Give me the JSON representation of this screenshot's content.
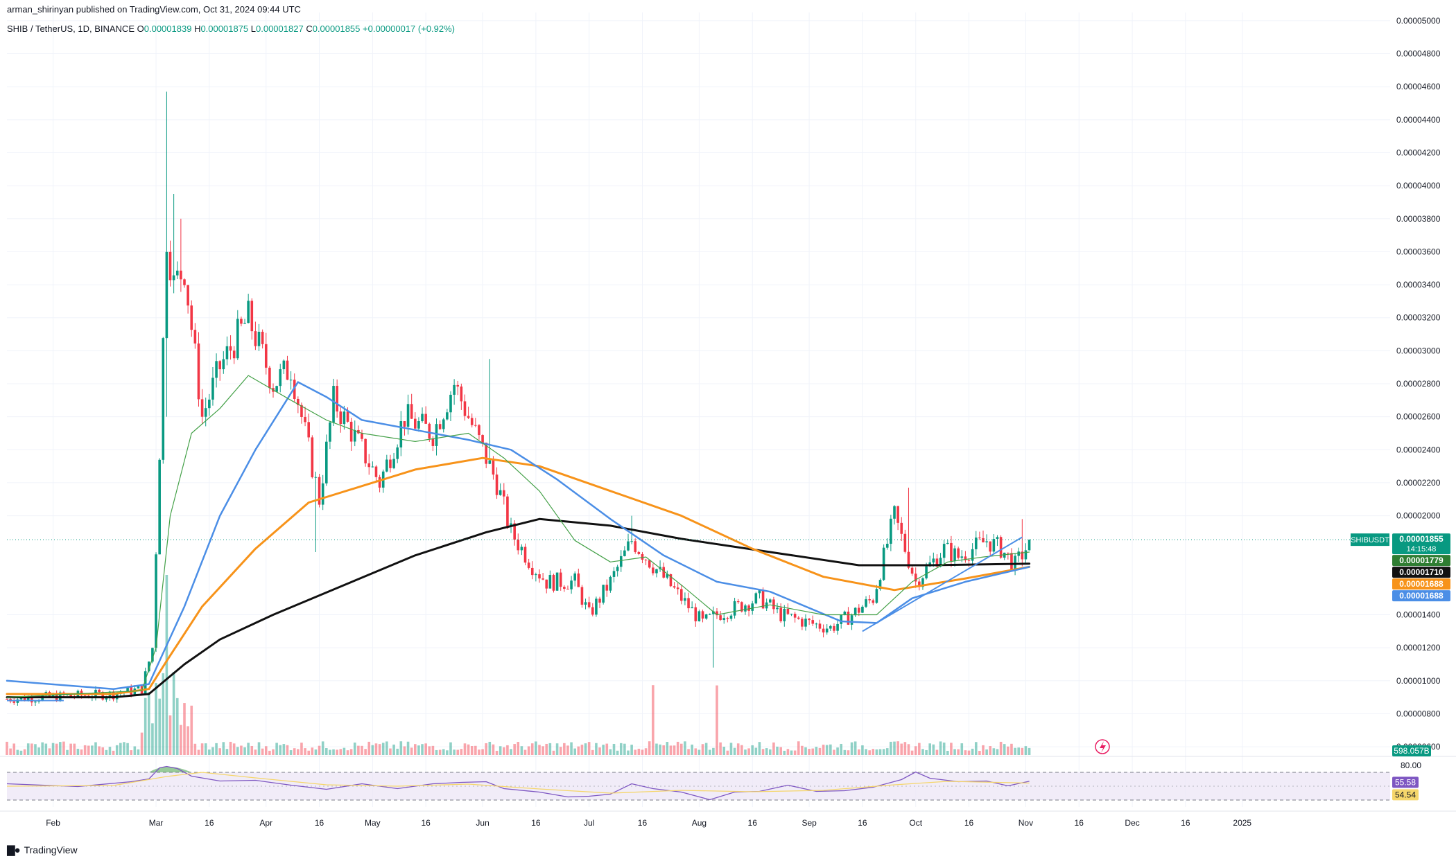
{
  "header": {
    "published": "arman_shirinyan published on TradingView.com, Oct 31, 2024 09:44 UTC",
    "symbol_line": "SHIB / TetherUS, 1D, BINANCE",
    "ohlc": {
      "open_label": "O",
      "open": "0.00001839",
      "high_label": "H",
      "high": "0.00001875",
      "low_label": "L",
      "low": "0.00001827",
      "close_label": "C",
      "close": "0.00001855",
      "change": "+0.00000017 (+0.92%)"
    }
  },
  "footer": {
    "brand": "TradingView"
  },
  "colors": {
    "up": "#089981",
    "down": "#f23645",
    "ma_green": "#43a047",
    "ma_blue": "#4b8ee6",
    "ma_orange": "#f7931a",
    "ma_black": "#111111",
    "rsi_line": "#7e57c2",
    "rsi_ma": "#f5d66b",
    "rsi_band": "#ede7f6"
  },
  "chart_data": {
    "type": "candlestick",
    "symbol": "SHIBUSDT",
    "y_axis": {
      "ticks": [
        "0.00005000",
        "0.00004800",
        "0.00004600",
        "0.00004400",
        "0.00004200",
        "0.00004000",
        "0.00003800",
        "0.00003600",
        "0.00003400",
        "0.00003200",
        "0.00003000",
        "0.00002800",
        "0.00002600",
        "0.00002400",
        "0.00002200",
        "0.00002000",
        "0.00001400",
        "0.00001200",
        "0.00001000",
        "0.00000800",
        "0.00000600"
      ],
      "range": [
        5.5e-06,
        5.05e-05
      ]
    },
    "x_axis": {
      "ticks": [
        "Feb",
        "Mar",
        "16",
        "Apr",
        "16",
        "May",
        "16",
        "Jun",
        "16",
        "Jul",
        "16",
        "Aug",
        "16",
        "Sep",
        "16",
        "Oct",
        "16",
        "Nov",
        "16",
        "Dec",
        "16",
        "2025"
      ],
      "tick_days": [
        13,
        42,
        57,
        73,
        88,
        103,
        118,
        134,
        149,
        164,
        179,
        195,
        210,
        226,
        241,
        256,
        271,
        287,
        302,
        317,
        332,
        348
      ]
    },
    "key_points": {
      "days": [
        0,
        30,
        38,
        41,
        43,
        45,
        47,
        50,
        55,
        60,
        68,
        75,
        80,
        88,
        92,
        100,
        105,
        112,
        120,
        126,
        130,
        134,
        138,
        142,
        148,
        152,
        160,
        164,
        170,
        176,
        182,
        190,
        196,
        200,
        206,
        212,
        218,
        226,
        232,
        238,
        244,
        250,
        253,
        256,
        260,
        264,
        268,
        272,
        276,
        280,
        284,
        287,
        288
      ],
      "prices": [
        8.9e-06,
        9.2e-06,
        9.5e-06,
        1.2e-05,
        2.4e-05,
        3.7e-05,
        3.4e-05,
        3.5e-05,
        2.6e-05,
        2.9e-05,
        3.2e-05,
        2.8e-05,
        2.9e-05,
        2.1e-05,
        2.7e-05,
        2.4e-05,
        2.2e-05,
        2.6e-05,
        2.5e-05,
        2.8e-05,
        2.6e-05,
        2.4e-05,
        2.2e-05,
        1.9e-05,
        1.7e-05,
        1.6e-05,
        1.6e-05,
        1.4e-05,
        1.6e-05,
        1.85e-05,
        1.7e-05,
        1.5e-05,
        1.35e-05,
        1.4e-05,
        1.45e-05,
        1.5e-05,
        1.4e-05,
        1.35e-05,
        1.32e-05,
        1.4e-05,
        1.5e-05,
        2e-05,
        1.8e-05,
        1.6e-05,
        1.7e-05,
        1.8e-05,
        1.75e-05,
        1.8e-05,
        1.85e-05,
        1.8e-05,
        1.7e-05,
        1.8e-05,
        1.855e-05
      ]
    },
    "spikes": [
      {
        "day": 45,
        "high": 4.57e-05,
        "low": 2.6e-05
      },
      {
        "day": 47,
        "high": 3.95e-05
      },
      {
        "day": 49,
        "high": 3.8e-05
      },
      {
        "day": 87,
        "low": 1.78e-05
      },
      {
        "day": 136,
        "high": 2.95e-05
      },
      {
        "day": 176,
        "high": 2e-05
      },
      {
        "day": 199,
        "low": 1.08e-05
      },
      {
        "day": 254,
        "high": 2.17e-05
      },
      {
        "day": 286,
        "high": 1.98e-05
      }
    ],
    "moving_averages": [
      {
        "color_key": "ma_black",
        "width": 3,
        "points": [
          [
            0,
            9e-06
          ],
          [
            30,
            9e-06
          ],
          [
            40,
            9.2e-06
          ],
          [
            50,
            1.1e-05
          ],
          [
            60,
            1.25e-05
          ],
          [
            75,
            1.4e-05
          ],
          [
            95,
            1.58e-05
          ],
          [
            115,
            1.76e-05
          ],
          [
            135,
            1.9e-05
          ],
          [
            150,
            1.98e-05
          ],
          [
            170,
            1.94e-05
          ],
          [
            190,
            1.86e-05
          ],
          [
            215,
            1.78e-05
          ],
          [
            240,
            1.7e-05
          ],
          [
            260,
            1.7e-05
          ],
          [
            288,
            1.71e-05
          ]
        ]
      },
      {
        "color_key": "ma_orange",
        "width": 3,
        "points": [
          [
            0,
            9.2e-06
          ],
          [
            30,
            9.2e-06
          ],
          [
            40,
            9.5e-06
          ],
          [
            45,
            1.12e-05
          ],
          [
            55,
            1.45e-05
          ],
          [
            70,
            1.8e-05
          ],
          [
            85,
            2.08e-05
          ],
          [
            100,
            2.18e-05
          ],
          [
            115,
            2.28e-05
          ],
          [
            134,
            2.35e-05
          ],
          [
            150,
            2.3e-05
          ],
          [
            170,
            2.15e-05
          ],
          [
            190,
            2e-05
          ],
          [
            210,
            1.8e-05
          ],
          [
            230,
            1.63e-05
          ],
          [
            250,
            1.55e-05
          ],
          [
            270,
            1.62e-05
          ],
          [
            288,
            1.69e-05
          ]
        ]
      },
      {
        "color_key": "ma_blue",
        "width": 2.5,
        "points": [
          [
            0,
            1e-05
          ],
          [
            30,
            9.5e-06
          ],
          [
            40,
            9.8e-06
          ],
          [
            50,
            1.45e-05
          ],
          [
            60,
            2e-05
          ],
          [
            70,
            2.4e-05
          ],
          [
            82,
            2.81e-05
          ],
          [
            90,
            2.72e-05
          ],
          [
            100,
            2.58e-05
          ],
          [
            115,
            2.52e-05
          ],
          [
            130,
            2.46e-05
          ],
          [
            142,
            2.4e-05
          ],
          [
            155,
            2.22e-05
          ],
          [
            170,
            1.98e-05
          ],
          [
            185,
            1.76e-05
          ],
          [
            200,
            1.6e-05
          ],
          [
            215,
            1.54e-05
          ],
          [
            235,
            1.36e-05
          ],
          [
            245,
            1.35e-05
          ],
          [
            255,
            1.5e-05
          ],
          [
            270,
            1.6e-05
          ],
          [
            288,
            1.69e-05
          ]
        ]
      },
      {
        "color_key": "ma_green",
        "width": 1.2,
        "points": [
          [
            0,
            9e-06
          ],
          [
            38,
            9.4e-06
          ],
          [
            42,
            1.2e-05
          ],
          [
            46,
            2e-05
          ],
          [
            52,
            2.5e-05
          ],
          [
            60,
            2.65e-05
          ],
          [
            68,
            2.85e-05
          ],
          [
            80,
            2.7e-05
          ],
          [
            90,
            2.58e-05
          ],
          [
            100,
            2.5e-05
          ],
          [
            115,
            2.45e-05
          ],
          [
            130,
            2.5e-05
          ],
          [
            140,
            2.35e-05
          ],
          [
            150,
            2.15e-05
          ],
          [
            160,
            1.85e-05
          ],
          [
            170,
            1.72e-05
          ],
          [
            180,
            1.75e-05
          ],
          [
            190,
            1.58e-05
          ],
          [
            200,
            1.4e-05
          ],
          [
            215,
            1.46e-05
          ],
          [
            230,
            1.4e-05
          ],
          [
            245,
            1.4e-05
          ],
          [
            255,
            1.6e-05
          ],
          [
            265,
            1.72e-05
          ],
          [
            275,
            1.75e-05
          ],
          [
            288,
            1.78e-05
          ]
        ]
      }
    ],
    "trendline": {
      "color_key": "ma_blue",
      "from": [
        241,
        1.3e-05
      ],
      "to": [
        286,
        1.87e-05
      ]
    },
    "range_box": {
      "color_key": "ma_blue",
      "from_day": 0,
      "to_day": 16,
      "price": 8.8e-06
    },
    "price_tags": [
      {
        "value": "0.00001855",
        "sub": "14:15:48",
        "price": 1.855e-05,
        "bg": "#089981"
      },
      {
        "value": "0.00001779",
        "price": 1.779e-05,
        "bg": "#2e7d32"
      },
      {
        "value": "0.00001710",
        "price": 1.71e-05,
        "bg": "#111111"
      },
      {
        "value": "0.00001688",
        "price": 1.688e-05,
        "bg": "#f7931a"
      },
      {
        "value": "0.00001688",
        "price": 1.688e-05,
        "bg": "#4b8ee6"
      }
    ],
    "symbol_tag": "SHIBUSDT",
    "volume": {
      "label": "598.057B",
      "spike_days": [
        42,
        44,
        45,
        47,
        48,
        182,
        200
      ]
    },
    "rsi": {
      "tick_label": "80.00",
      "value": "55.58",
      "ma_value": "54.54",
      "upper": 70,
      "lower": 30,
      "points": [
        [
          0,
          52
        ],
        [
          20,
          51
        ],
        [
          35,
          55
        ],
        [
          40,
          62
        ],
        [
          43,
          75
        ],
        [
          45,
          80
        ],
        [
          48,
          74
        ],
        [
          52,
          66
        ],
        [
          60,
          56
        ],
        [
          70,
          60
        ],
        [
          80,
          50
        ],
        [
          90,
          47
        ],
        [
          100,
          52
        ],
        [
          110,
          48
        ],
        [
          120,
          52
        ],
        [
          128,
          57
        ],
        [
          135,
          55
        ],
        [
          140,
          48
        ],
        [
          150,
          40
        ],
        [
          158,
          36
        ],
        [
          164,
          34
        ],
        [
          170,
          40
        ],
        [
          176,
          52
        ],
        [
          182,
          48
        ],
        [
          190,
          40
        ],
        [
          198,
          32
        ],
        [
          205,
          40
        ],
        [
          212,
          44
        ],
        [
          220,
          50
        ],
        [
          228,
          44
        ],
        [
          236,
          42
        ],
        [
          244,
          50
        ],
        [
          252,
          58
        ],
        [
          256,
          72
        ],
        [
          260,
          60
        ],
        [
          268,
          58
        ],
        [
          276,
          56
        ],
        [
          282,
          52
        ],
        [
          288,
          55.6
        ]
      ],
      "ma_points": [
        [
          0,
          50
        ],
        [
          30,
          51
        ],
        [
          45,
          64
        ],
        [
          55,
          70
        ],
        [
          70,
          62
        ],
        [
          90,
          52
        ],
        [
          110,
          50
        ],
        [
          130,
          53
        ],
        [
          150,
          46
        ],
        [
          170,
          40
        ],
        [
          190,
          44
        ],
        [
          210,
          42
        ],
        [
          230,
          44
        ],
        [
          250,
          52
        ],
        [
          265,
          57
        ],
        [
          288,
          54.5
        ]
      ]
    }
  }
}
